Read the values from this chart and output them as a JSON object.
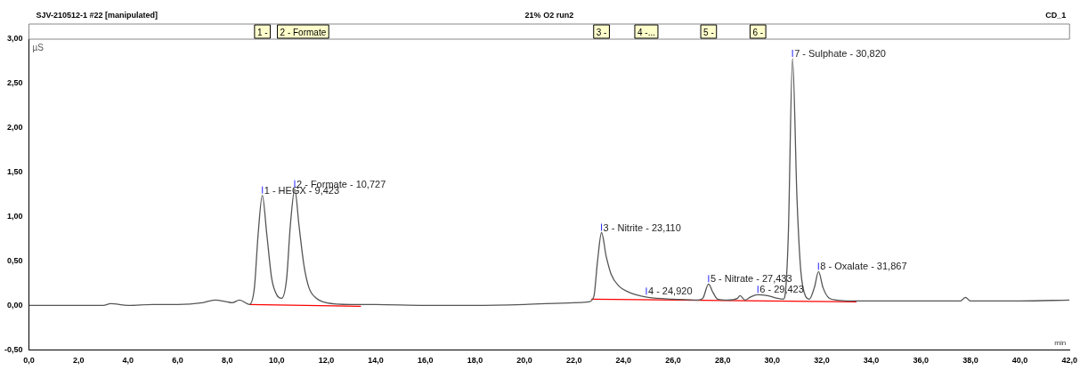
{
  "chart_data": {
    "type": "line",
    "title": "21% O2 run2",
    "subtitle": "SJV-210512-1 #22 [manipulated]",
    "xlabel": "min",
    "ylabel": "µS",
    "xlim": [
      0,
      42
    ],
    "ylim": [
      -0.5,
      3.0
    ],
    "xticks": [
      {
        "value": 0,
        "label": "0,0"
      },
      {
        "value": 2,
        "label": "2,0"
      },
      {
        "value": 4,
        "label": "4,0"
      },
      {
        "value": 6,
        "label": "6,0"
      },
      {
        "value": 8,
        "label": "8,0"
      },
      {
        "value": 10,
        "label": "10,0"
      },
      {
        "value": 12,
        "label": "12,0"
      },
      {
        "value": 14,
        "label": "14,0"
      },
      {
        "value": 16,
        "label": "16,0"
      },
      {
        "value": 18,
        "label": "18,0"
      },
      {
        "value": 20,
        "label": "20,0"
      },
      {
        "value": 22,
        "label": "22,0"
      },
      {
        "value": 24,
        "label": "24,0"
      },
      {
        "value": 26,
        "label": "26,0"
      },
      {
        "value": 28,
        "label": "28,0"
      },
      {
        "value": 30,
        "label": "30,0"
      },
      {
        "value": 32,
        "label": "32,0"
      },
      {
        "value": 34,
        "label": "34,0"
      },
      {
        "value": 36,
        "label": "36,0"
      },
      {
        "value": 38,
        "label": "38,0"
      },
      {
        "value": 40,
        "label": "40,0"
      },
      {
        "value": 42,
        "label": "42,0"
      }
    ],
    "yticks": [
      {
        "value": -0.5,
        "label": "-0,50"
      },
      {
        "value": 0,
        "label": "0,00"
      },
      {
        "value": 0.5,
        "label": "0,50"
      },
      {
        "value": 1,
        "label": "1,00"
      },
      {
        "value": 1.5,
        "label": "1,50"
      },
      {
        "value": 2,
        "label": "2,00"
      },
      {
        "value": 2.5,
        "label": "2,50"
      },
      {
        "value": 3,
        "label": "3,00"
      }
    ],
    "grid": false,
    "legend": false,
    "marker": "none",
    "line_style": "solid",
    "series": [
      {
        "color": "#555555",
        "x": [
          0,
          1,
          2,
          3,
          3.3,
          4,
          5,
          6,
          7,
          7.5,
          8,
          8.2,
          8.5,
          8.9,
          9.1,
          9.25,
          9.42,
          9.6,
          9.8,
          10,
          10.2,
          10.4,
          10.55,
          10.73,
          10.9,
          11.1,
          11.3,
          11.6,
          12,
          13,
          14,
          16,
          18,
          20,
          22,
          22.6,
          22.8,
          22.95,
          23.11,
          23.3,
          23.5,
          23.8,
          24.2,
          24.5,
          25,
          26,
          27,
          27.2,
          27.43,
          27.6,
          27.8,
          28.2,
          28.6,
          28.7,
          28.9,
          29.1,
          29.4,
          29.8,
          30.2,
          30.45,
          30.55,
          30.65,
          30.82,
          31,
          31.15,
          31.35,
          31.5,
          31.7,
          31.87,
          32.05,
          32.3,
          32.6,
          33,
          34,
          36,
          37.6,
          37.8,
          38,
          40,
          42
        ],
        "values": [
          0,
          0,
          0,
          0,
          0.02,
          0,
          0.01,
          0.01,
          0.03,
          0.06,
          0.04,
          0.03,
          0.06,
          0.01,
          0.2,
          0.8,
          1.24,
          0.8,
          0.3,
          0.12,
          0.08,
          0.3,
          0.9,
          1.31,
          0.9,
          0.45,
          0.2,
          0.08,
          0.03,
          0.01,
          0.01,
          0,
          0,
          0.01,
          0.03,
          0.04,
          0.1,
          0.5,
          0.82,
          0.55,
          0.35,
          0.22,
          0.15,
          0.12,
          0.09,
          0.07,
          0.06,
          0.08,
          0.24,
          0.15,
          0.07,
          0.06,
          0.08,
          0.11,
          0.06,
          0.09,
          0.12,
          0.11,
          0.08,
          0.07,
          0.2,
          0.8,
          2.78,
          1.2,
          0.4,
          0.1,
          0.07,
          0.2,
          0.38,
          0.2,
          0.08,
          0.06,
          0.05,
          0.05,
          0.05,
          0.05,
          0.09,
          0.05,
          0.05,
          0.06
        ]
      },
      {
        "color": "#ff0000",
        "x": [
          8.9,
          13.4
        ],
        "values": [
          0.01,
          -0.01
        ]
      },
      {
        "color": "#ff0000",
        "x": [
          22.7,
          33.4
        ],
        "values": [
          0.07,
          0.04
        ]
      }
    ],
    "annotations": [
      "CD_1",
      {
        "text": "1 - HEGX - 9,423",
        "x": 9.423,
        "y": 1.24
      },
      {
        "text": "2 - Formate - 10,727",
        "x": 10.727,
        "y": 1.31
      },
      {
        "text": "3 - Nitrite - 23,110",
        "x": 23.11,
        "y": 0.82
      },
      {
        "text": "4 - 24,920",
        "x": 24.92,
        "y": 0.1
      },
      {
        "text": "5 - Nitrate - 27,433",
        "x": 27.433,
        "y": 0.24
      },
      {
        "text": "6 - 29,423",
        "x": 29.423,
        "y": 0.12
      },
      {
        "text": "7 - Sulphate - 30,820",
        "x": 30.82,
        "y": 2.78
      },
      {
        "text": "8 - Oxalate - 31,867",
        "x": 31.867,
        "y": 0.38
      },
      "1 -",
      "2 - Formate",
      "3 -",
      "4 -...",
      "5 -",
      "6 -"
    ]
  }
}
